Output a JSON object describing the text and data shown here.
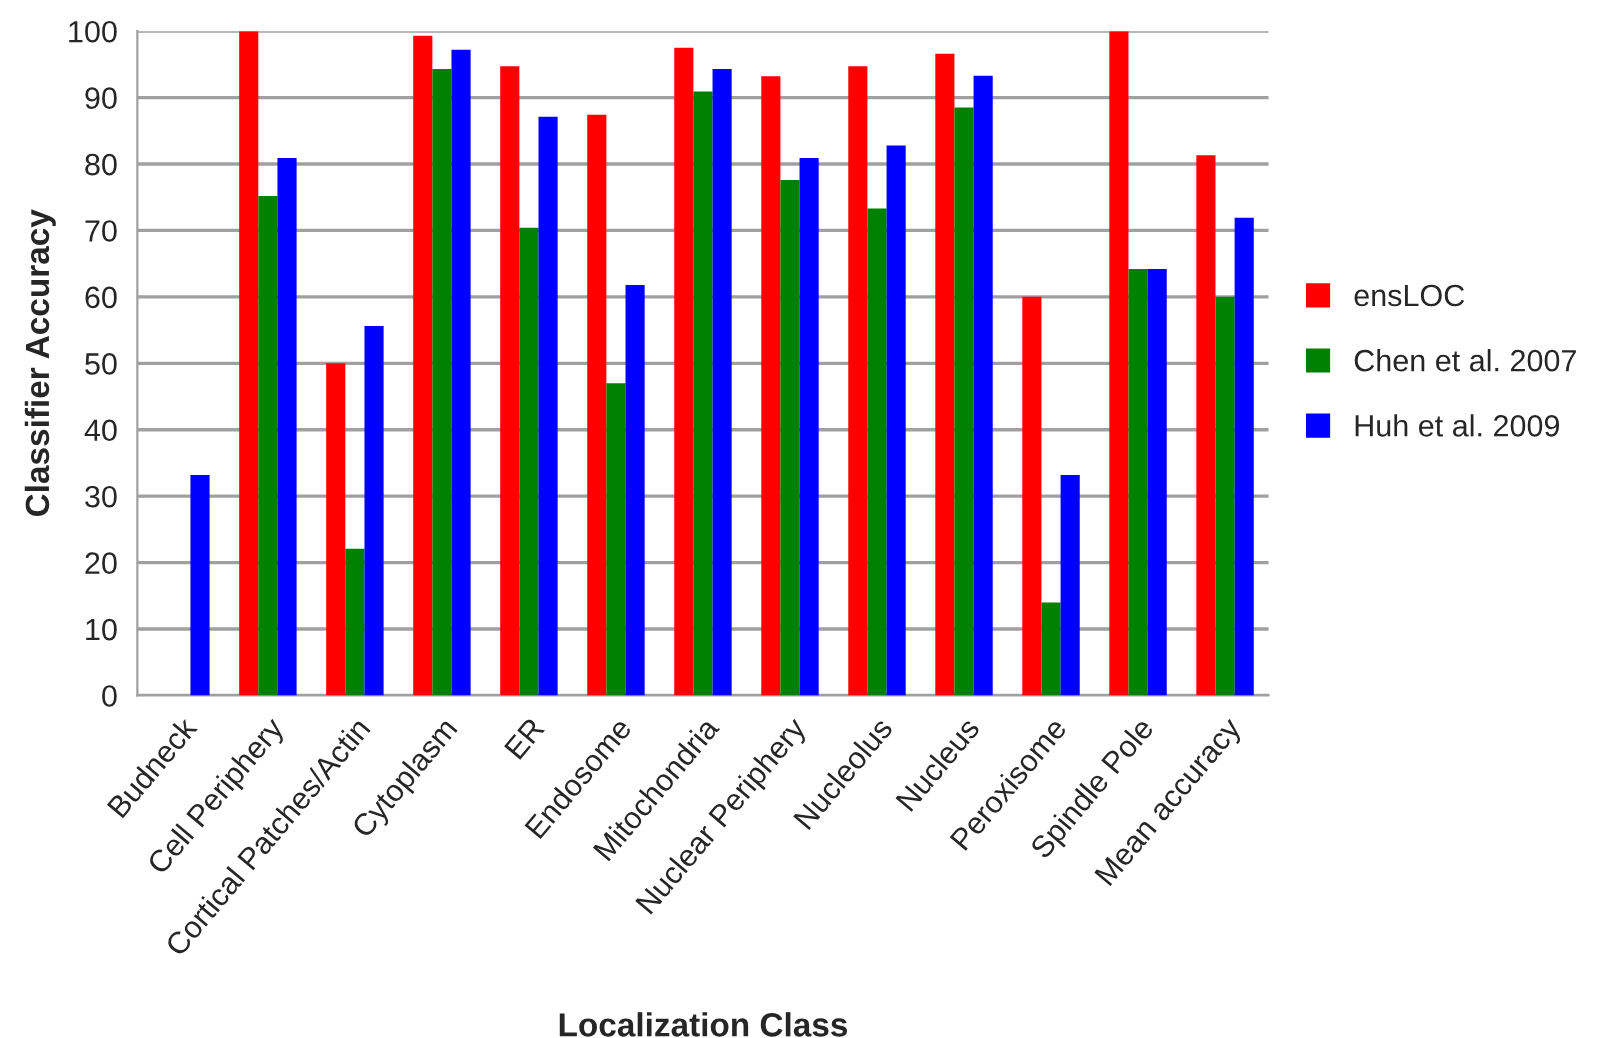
{
  "chart_data": {
    "type": "bar",
    "xlabel": "Localization Class",
    "ylabel": "Classifier Accuracy",
    "categories": [
      "Budneck",
      "Cell Periphery",
      "Cortical Patches/Actin",
      "Cytoplasm",
      "ER",
      "Endosome",
      "Mitochondria",
      "Nuclear Periphery",
      "Nucleolus",
      "Nucleus",
      "Peroxisome",
      "Spindle Pole",
      "Mean accuracy"
    ],
    "series": [
      {
        "name": "ensLOC",
        "color": "#ff0000",
        "values": [
          null,
          100,
          50,
          99.3,
          94.7,
          87.4,
          97.5,
          93.2,
          94.7,
          96.6,
          60,
          100,
          81.3
        ]
      },
      {
        "name": "Chen et al. 2007",
        "color": "#008000",
        "values": [
          null,
          75.2,
          22.1,
          94.3,
          70.4,
          47.0,
          90.9,
          77.6,
          73.3,
          88.5,
          14.0,
          64.2,
          60.0
        ]
      },
      {
        "name": "Huh et al. 2009",
        "color": "#0000ff",
        "values": [
          33.2,
          80.9,
          55.6,
          97.2,
          87.1,
          61.8,
          94.3,
          80.9,
          82.8,
          93.3,
          33.2,
          64.2,
          71.9
        ]
      }
    ],
    "ylim": [
      0,
      100
    ],
    "yticks": [
      0,
      10,
      20,
      30,
      40,
      50,
      60,
      70,
      80,
      90,
      100
    ],
    "grid": "y",
    "legend": "right"
  }
}
